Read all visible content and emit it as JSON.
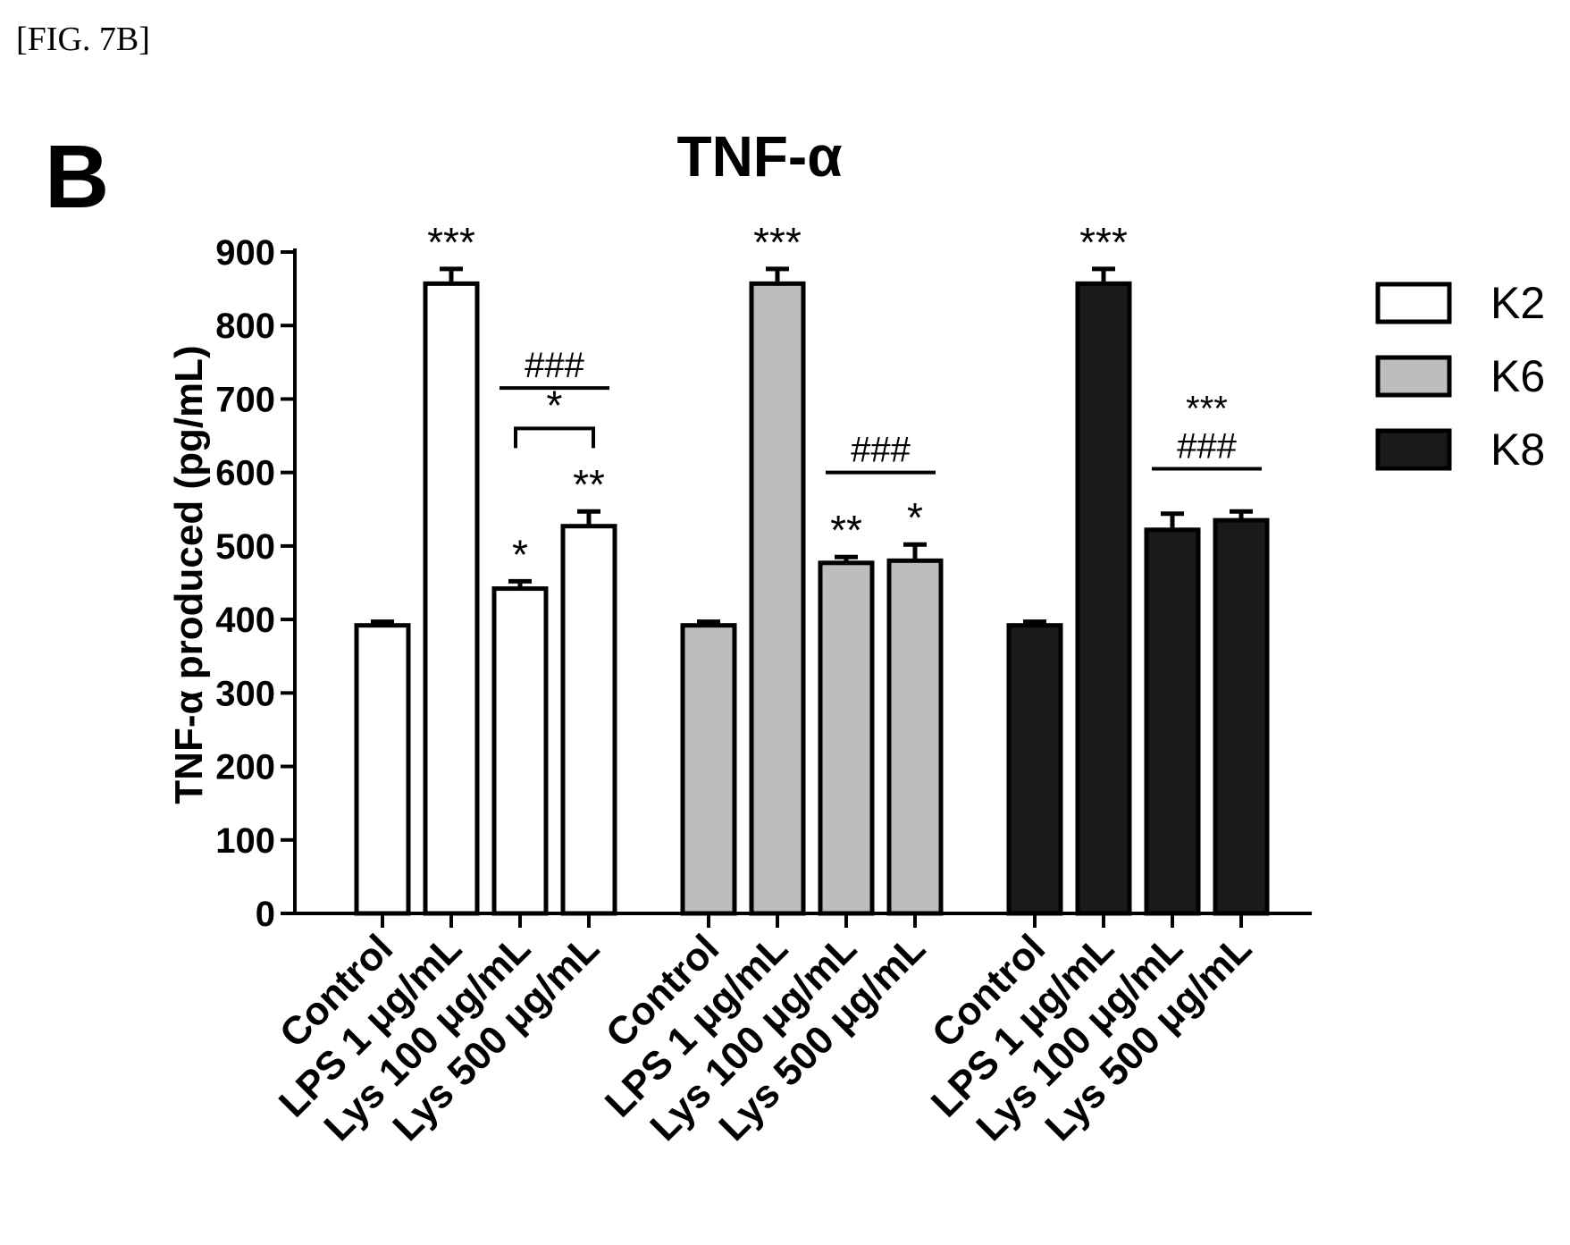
{
  "figure_label": "[FIG. 7B]",
  "panel_letter": "B",
  "chart_data": {
    "type": "bar",
    "title": "TNF-α",
    "ylabel": "TNF-α produced (pg/mL)",
    "xlabel": "",
    "ylim": [
      0,
      900
    ],
    "yticks": [
      0,
      100,
      200,
      300,
      400,
      500,
      600,
      700,
      800,
      900
    ],
    "grid": false,
    "legend_position": "right",
    "categories": [
      "Control",
      "LPS 1 μg/mL",
      "Lys 100 μg/mL",
      "Lys 500 μg/mL"
    ],
    "series": [
      {
        "name": "K2",
        "color": "#ffffff",
        "values": [
          392,
          857,
          442,
          527
        ],
        "errors": [
          5,
          20,
          10,
          20
        ],
        "annotations": [
          "",
          "***",
          "*",
          "**"
        ]
      },
      {
        "name": "K6",
        "color": "#bdbdbd",
        "values": [
          392,
          857,
          477,
          480
        ],
        "errors": [
          5,
          20,
          8,
          22
        ],
        "annotations": [
          "",
          "***",
          "**",
          "*"
        ]
      },
      {
        "name": "K8",
        "color": "#1a1a1a",
        "values": [
          392,
          857,
          522,
          535
        ],
        "errors": [
          5,
          20,
          22,
          12
        ],
        "annotations": [
          "",
          "***",
          "",
          ""
        ]
      }
    ],
    "comparisons": [
      {
        "series": 0,
        "type": "bracket",
        "from": 2,
        "to": 3,
        "label": "*",
        "y": 660
      },
      {
        "series": 0,
        "type": "line",
        "from": 2,
        "to": 3,
        "label": "###",
        "y": 715
      },
      {
        "series": 1,
        "type": "line",
        "from": 2,
        "to": 3,
        "label": "###",
        "y": 600
      },
      {
        "series": 2,
        "type": "line",
        "from": 2,
        "to": 3,
        "label": "###",
        "y": 605
      },
      {
        "series": 2,
        "type": "line",
        "from": 2,
        "to": 3,
        "label": "***",
        "y": 605,
        "stack": 1
      }
    ]
  }
}
